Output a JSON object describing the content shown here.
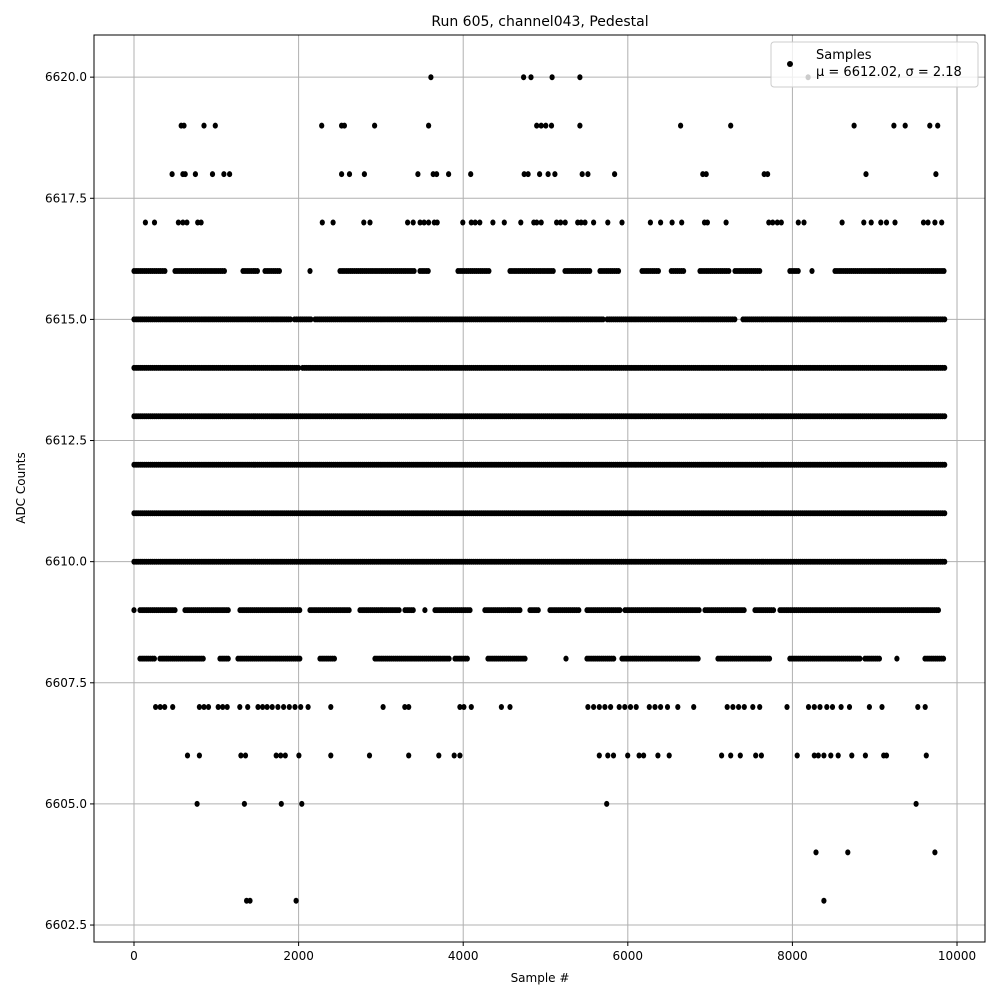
{
  "chart_data": {
    "type": "scatter",
    "title": "Run 605, channel043, Pedestal",
    "xlabel": "Sample #",
    "ylabel": "ADC Counts",
    "xlim": [
      -486,
      10340
    ],
    "ylim": [
      6602.15,
      6620.87
    ],
    "xticks": [
      0,
      2000,
      4000,
      6000,
      8000,
      10000
    ],
    "xtick_labels": [
      "0",
      "2000",
      "4000",
      "6000",
      "8000",
      "10000"
    ],
    "yticks": [
      6602.5,
      6605.0,
      6607.5,
      6610.0,
      6612.5,
      6615.0,
      6617.5,
      6620.0
    ],
    "ytick_labels": [
      "6602.5",
      "6605.0",
      "6607.5",
      "6610.0",
      "6612.5",
      "6615.0",
      "6617.5",
      "6620.0"
    ],
    "grid": true,
    "legend": {
      "position": "top-right",
      "entries": [
        "Samples",
        "μ = 6612.02, σ = 2.18"
      ]
    },
    "marker_color": "#000000",
    "series": [
      {
        "name": "Samples",
        "levels": [
          {
            "y": 6620,
            "x": [
              3607,
              4734,
              4824,
              5080,
              5418,
              8190
            ]
          },
          {
            "y": 6619,
            "x": [
              574,
              608,
              850,
              988,
              2281,
              2522,
              2557,
              2923,
              3580,
              4893,
              4948,
              5003,
              5073,
              5418,
              6641,
              7250,
              8749,
              9233,
              9371,
              9669,
              9765
            ]
          },
          {
            "y": 6618,
            "x": [
              463,
              594,
              622,
              746,
              954,
              1092,
              1161,
              2522,
              2619,
              2799,
              3449,
              3635,
              3677,
              3822,
              4091,
              4741,
              4789,
              4928,
              5031,
              5114,
              5446,
              5515,
              5840,
              6911,
              6953,
              7657,
              7699,
              8894,
              9744
            ]
          },
          {
            "y": 6617,
            "x": [
              138,
              249,
              539,
              594,
              643,
              774,
              815,
              2288,
              2419,
              2792,
              2868,
              3324,
              3393,
              3476,
              3525,
              3580,
              3649,
              3684,
              3995,
              4098,
              4146,
              4202,
              4361,
              4499,
              4700,
              4858,
              4893,
              4948,
              5135,
              5183,
              5239,
              5391,
              5432,
              5480,
              5584,
              5757,
              5930,
              6275,
              6399,
              6538,
              6655,
              6932,
              6967,
              7194,
              7713,
              7761,
              7816,
              7865,
              8072,
              8141,
              8604,
              8867,
              8957,
              9074,
              9143,
              9247,
              9593,
              9648,
              9731,
              9814
            ]
          },
          {
            "y": 6616,
            "ranges": [
              [
                0,
                377
              ],
              [
                498,
                1106
              ],
              [
                1324,
                1507
              ],
              [
                1592,
                1774
              ],
              [
                2138,
                2138
              ],
              [
                2503,
                3414
              ],
              [
                3475,
                3596
              ],
              [
                3937,
                4325
              ],
              [
                4568,
                5115
              ],
              [
                5237,
                5540
              ],
              [
                5662,
                5905
              ],
              [
                6172,
                6391
              ],
              [
                6528,
                6695
              ],
              [
                6877,
                7241
              ],
              [
                7302,
                7606
              ],
              [
                7970,
                8092
              ],
              [
                8238,
                8238
              ],
              [
                8517,
                9854
              ]
            ]
          },
          {
            "y": 6615,
            "ranges": [
              [
                0,
                1900
              ],
              [
                1950,
                2150
              ],
              [
                2200,
                5700
              ],
              [
                5750,
                7300
              ],
              [
                7400,
                9854
              ]
            ]
          },
          {
            "y": 6614,
            "ranges": [
              [
                0,
                2000
              ],
              [
                2050,
                9854
              ]
            ]
          },
          {
            "y": 6613,
            "ranges": [
              [
                0,
                9854
              ]
            ]
          },
          {
            "y": 6612,
            "ranges": [
              [
                0,
                9854
              ]
            ]
          },
          {
            "y": 6611,
            "ranges": [
              [
                0,
                9854
              ]
            ]
          },
          {
            "y": 6610,
            "ranges": [
              [
                0,
                9854
              ]
            ]
          },
          {
            "y": 6609,
            "ranges": [
              [
                0,
                0
              ],
              [
                73,
                498
              ],
              [
                620,
                1166
              ],
              [
                1288,
                2017
              ],
              [
                2138,
                2624
              ],
              [
                2746,
                3232
              ],
              [
                3293,
                3414
              ],
              [
                3535,
                3535
              ],
              [
                3657,
                4082
              ],
              [
                4264,
                4690
              ],
              [
                4811,
                4933
              ],
              [
                5054,
                5419
              ],
              [
                5504,
                5905
              ],
              [
                5966,
                6877
              ],
              [
                6938,
                7424
              ],
              [
                7545,
                7788
              ],
              [
                7849,
                9793
              ]
            ]
          },
          {
            "y": 6608,
            "ranges": [
              [
                73,
                255
              ],
              [
                316,
                863
              ],
              [
                1045,
                1166
              ],
              [
                1264,
                2017
              ],
              [
                2260,
                2442
              ],
              [
                2928,
                3839
              ],
              [
                3900,
                4058
              ],
              [
                4301,
                4751
              ],
              [
                5249,
                5249
              ],
              [
                5504,
                5844
              ],
              [
                5929,
                6877
              ],
              [
                7096,
                7728
              ],
              [
                7970,
                8821
              ],
              [
                8882,
                9064
              ],
              [
                9270,
                9270
              ],
              [
                9611,
                9854
              ]
            ]
          },
          {
            "y": 6607,
            "x": [
              263,
              318,
              373,
              470,
              795,
              850,
              905,
              1023,
              1078,
              1133,
              1285,
              1382,
              1507,
              1562,
              1617,
              1679,
              1748,
              1818,
              1887,
              1956,
              2025,
              2115,
              2391,
              3027,
              3290,
              3338,
              3960,
              4008,
              4098,
              4464,
              4568,
              5515,
              5584,
              5653,
              5722,
              5791,
              5895,
              5964,
              6033,
              6102,
              6261,
              6330,
              6399,
              6482,
              6607,
              6800,
              7208,
              7277,
              7346,
              7416,
              7519,
              7602,
              7934,
              8196,
              8266,
              8335,
              8418,
              8487,
              8591,
              8694,
              8936,
              9088,
              9523,
              9613
            ]
          },
          {
            "y": 6606,
            "x": [
              650,
              795,
              1299,
              1355,
              1728,
              1783,
              1838,
              2004,
              2391,
              2861,
              3338,
              3704,
              3891,
              3960,
              5653,
              5757,
              5826,
              5999,
              6137,
              6192,
              6365,
              6503,
              7139,
              7250,
              7367,
              7554,
              7623,
              8058,
              8266,
              8314,
              8383,
              8466,
              8556,
              8722,
              8887,
              9109,
              9143,
              9627
            ]
          },
          {
            "y": 6605,
            "x": [
              767,
              1341,
              1790,
              2039,
              5743,
              9503
            ]
          },
          {
            "y": 6604,
            "x": [
              8286,
              8673,
              9731
            ]
          },
          {
            "y": 6603,
            "x": [
              1368,
              1410,
              1970,
              8383
            ]
          }
        ]
      }
    ]
  }
}
